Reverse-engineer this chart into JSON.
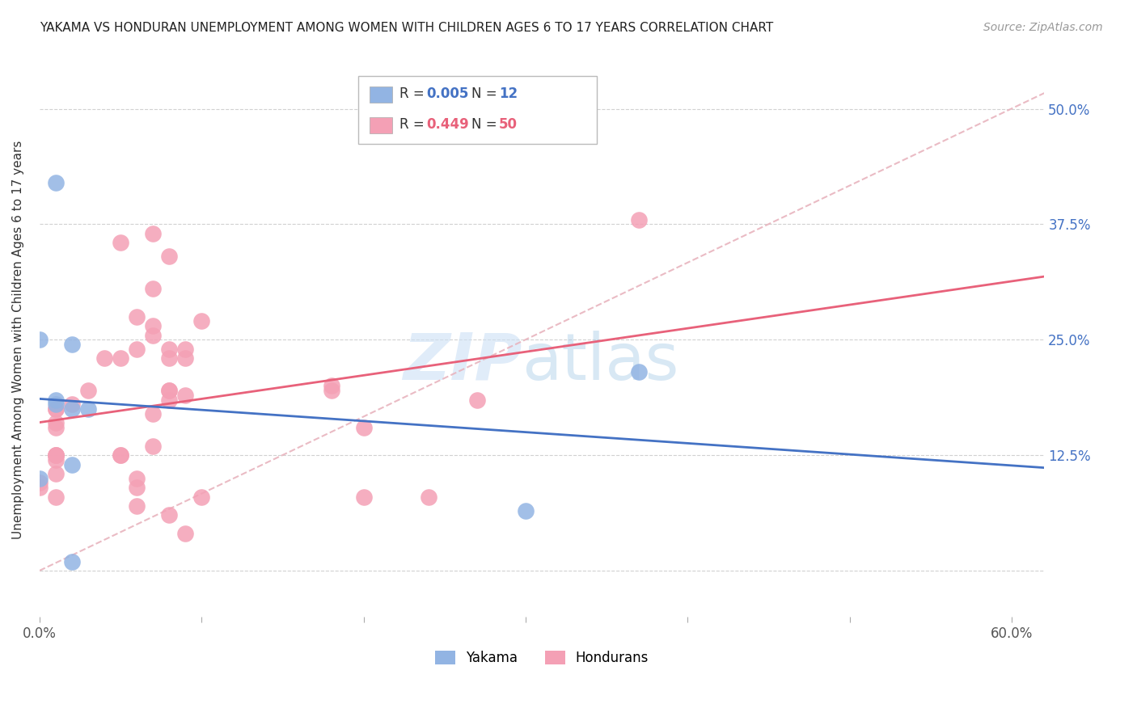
{
  "title": "YAKAMA VS HONDURAN UNEMPLOYMENT AMONG WOMEN WITH CHILDREN AGES 6 TO 17 YEARS CORRELATION CHART",
  "source": "Source: ZipAtlas.com",
  "ylabel": "Unemployment Among Women with Children Ages 6 to 17 years",
  "xlim": [
    0.0,
    0.62
  ],
  "ylim": [
    -0.05,
    0.55
  ],
  "xticks": [
    0.0,
    0.1,
    0.2,
    0.3,
    0.4,
    0.5,
    0.6
  ],
  "xticklabels": [
    "0.0%",
    "",
    "",
    "",
    "",
    "",
    "60.0%"
  ],
  "yticks": [
    0.0,
    0.125,
    0.25,
    0.375,
    0.5
  ],
  "yticklabels": [
    "",
    "12.5%",
    "25.0%",
    "37.5%",
    "50.0%"
  ],
  "yakama_color": "#92b4e3",
  "honduran_color": "#f4a0b5",
  "trend_yakama_color": "#4472c4",
  "trend_honduran_color": "#e8617a",
  "diagonal_color": "#e8b4be",
  "R_yakama": 0.005,
  "N_yakama": 12,
  "R_honduran": 0.449,
  "N_honduran": 50,
  "yakama_x": [
    0.01,
    0.02,
    0.0,
    0.01,
    0.01,
    0.02,
    0.03,
    0.02,
    0.37,
    0.0,
    0.3,
    0.02
  ],
  "yakama_y": [
    0.42,
    0.245,
    0.25,
    0.185,
    0.18,
    0.175,
    0.175,
    0.115,
    0.215,
    0.1,
    0.065,
    0.01
  ],
  "honduran_x": [
    0.05,
    0.07,
    0.07,
    0.09,
    0.04,
    0.05,
    0.08,
    0.08,
    0.1,
    0.06,
    0.07,
    0.06,
    0.08,
    0.09,
    0.08,
    0.09,
    0.03,
    0.02,
    0.01,
    0.01,
    0.01,
    0.01,
    0.01,
    0.01,
    0.01,
    0.01,
    0.01,
    0.0,
    0.0,
    0.01,
    0.05,
    0.05,
    0.07,
    0.07,
    0.08,
    0.18,
    0.18,
    0.2,
    0.27,
    0.07,
    0.08,
    0.06,
    0.08,
    0.2,
    0.09,
    0.06,
    0.24,
    0.37,
    0.1,
    0.06
  ],
  "honduran_y": [
    0.355,
    0.305,
    0.265,
    0.23,
    0.23,
    0.23,
    0.24,
    0.23,
    0.27,
    0.275,
    0.255,
    0.24,
    0.195,
    0.24,
    0.195,
    0.19,
    0.195,
    0.18,
    0.175,
    0.175,
    0.16,
    0.155,
    0.125,
    0.125,
    0.125,
    0.12,
    0.105,
    0.095,
    0.09,
    0.08,
    0.125,
    0.125,
    0.135,
    0.17,
    0.185,
    0.195,
    0.2,
    0.155,
    0.185,
    0.365,
    0.34,
    0.1,
    0.06,
    0.08,
    0.04,
    0.07,
    0.08,
    0.38,
    0.08,
    0.09
  ],
  "background_color": "#ffffff",
  "grid_color": "#cccccc"
}
